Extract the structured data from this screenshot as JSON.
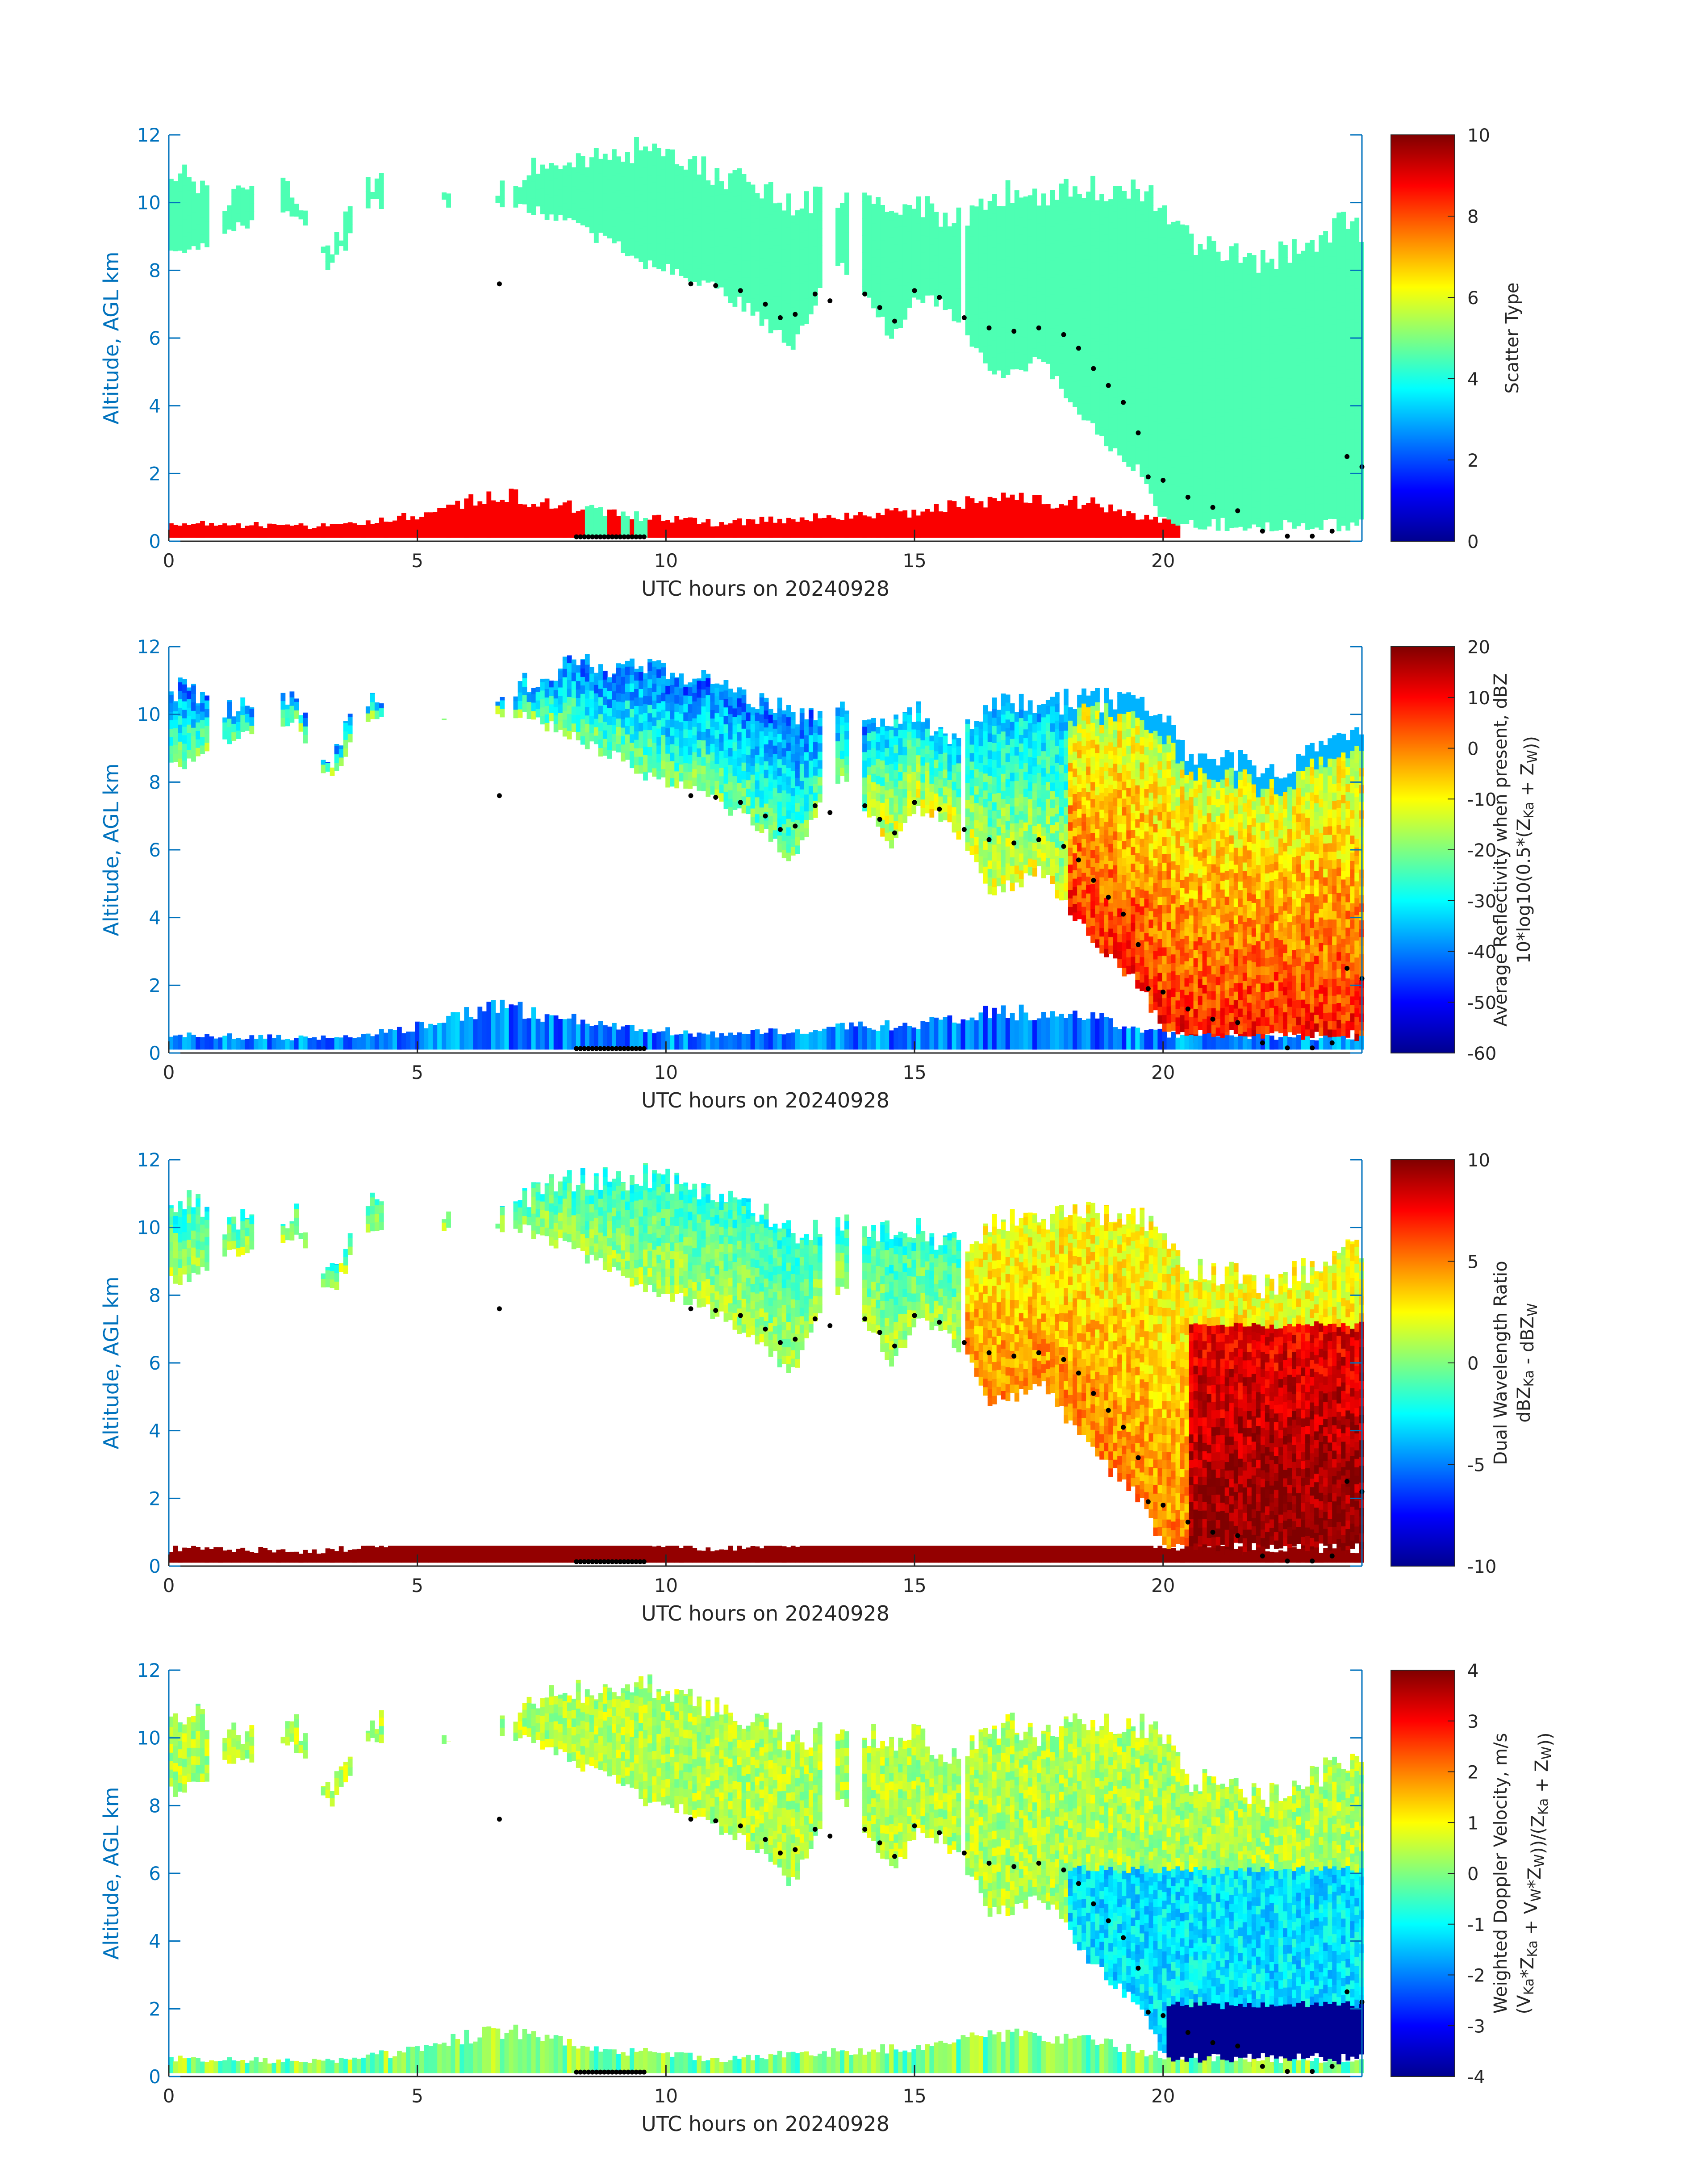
{
  "colors": {
    "axis": "#0072BD",
    "text": "#262626",
    "marker": "#000000"
  },
  "colormap": "jet",
  "chart_data": [
    {
      "type": "heatmap",
      "xlabel": "UTC hours on 20240928",
      "ylabel": "Altitude, AGL km",
      "xlim": [
        0,
        24
      ],
      "ylim": [
        0,
        12
      ],
      "xticks": [
        "0",
        "5",
        "10",
        "15",
        "20"
      ],
      "yticks": [
        "0",
        "2",
        "4",
        "6",
        "8",
        "10",
        "12"
      ],
      "colorbar": {
        "label_lines": [
          "Scatter Type"
        ],
        "clim": [
          0,
          10
        ],
        "ticks": [
          "0",
          "2",
          "4",
          "6",
          "8",
          "10"
        ]
      }
    },
    {
      "type": "heatmap",
      "xlabel": "UTC hours on 20240928",
      "ylabel": "Altitude, AGL km",
      "xlim": [
        0,
        24
      ],
      "ylim": [
        0,
        12
      ],
      "xticks": [
        "0",
        "5",
        "10",
        "15",
        "20"
      ],
      "yticks": [
        "0",
        "2",
        "4",
        "6",
        "8",
        "10",
        "12"
      ],
      "colorbar": {
        "label_lines": [
          "Average Reflectivity when present, dBZ",
          "10*log10(0.5*(Z_Ka + Z_W))"
        ],
        "clim": [
          -60,
          20
        ],
        "ticks": [
          "-60",
          "-50",
          "-40",
          "-30",
          "-20",
          "-10",
          "0",
          "10",
          "20"
        ]
      }
    },
    {
      "type": "heatmap",
      "xlabel": "UTC hours on 20240928",
      "ylabel": "Altitude, AGL km",
      "xlim": [
        0,
        24
      ],
      "ylim": [
        0,
        12
      ],
      "xticks": [
        "0",
        "5",
        "10",
        "15",
        "20"
      ],
      "yticks": [
        "0",
        "2",
        "4",
        "6",
        "8",
        "10",
        "12"
      ],
      "colorbar": {
        "label_lines": [
          "Dual Wavelength Ratio",
          "dBZ_Ka - dBZ_W"
        ],
        "clim": [
          -10,
          10
        ],
        "ticks": [
          "-10",
          "-5",
          "0",
          "5",
          "10"
        ]
      }
    },
    {
      "type": "heatmap",
      "xlabel": "UTC hours on 20240928",
      "ylabel": "Altitude, AGL km",
      "xlim": [
        0,
        24
      ],
      "ylim": [
        0,
        12
      ],
      "xticks": [
        "0",
        "5",
        "10",
        "15",
        "20"
      ],
      "yticks": [
        "0",
        "2",
        "4",
        "6",
        "8",
        "10",
        "12"
      ],
      "colorbar": {
        "label_lines": [
          "Weighted Doppler Velocity, m/s",
          "(V_Ka*Z_Ka + V_W*Z_W))/(Z_Ka + Z_W))"
        ],
        "clim": [
          -4,
          4
        ],
        "ticks": [
          "-4",
          "-3",
          "-2",
          "-1",
          "0",
          "1",
          "2",
          "3",
          "4"
        ]
      }
    }
  ]
}
